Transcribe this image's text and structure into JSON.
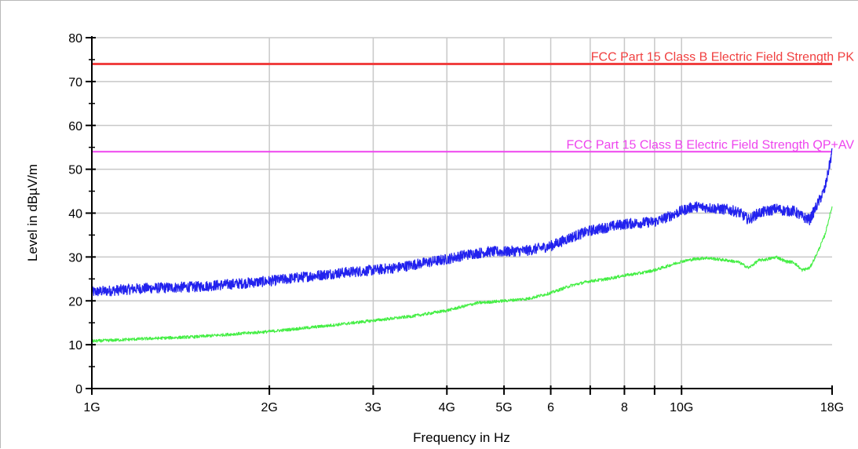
{
  "chart_data": {
    "type": "line",
    "xlabel": "Frequency in Hz",
    "ylabel": "Level in dBµV/m",
    "xscale": "log",
    "xlim_hz": [
      1000000000,
      18000000000
    ],
    "ylim": [
      0,
      80
    ],
    "grid": true,
    "x_ticks": [
      {
        "hz": 1000000000,
        "label": "1G"
      },
      {
        "hz": 2000000000,
        "label": "2G"
      },
      {
        "hz": 3000000000,
        "label": "3G"
      },
      {
        "hz": 4000000000,
        "label": "4G"
      },
      {
        "hz": 5000000000,
        "label": "5G"
      },
      {
        "hz": 6000000000,
        "label": "6"
      },
      {
        "hz": 7000000000,
        "label": ""
      },
      {
        "hz": 8000000000,
        "label": "8"
      },
      {
        "hz": 9000000000,
        "label": ""
      },
      {
        "hz": 10000000000,
        "label": "10G"
      },
      {
        "hz": 18000000000,
        "label": "18G"
      }
    ],
    "y_ticks": [
      0,
      10,
      20,
      30,
      40,
      50,
      60,
      70,
      80
    ],
    "limit_lines": [
      {
        "name": "FCC Part 15 Class B Electric Field Strength PK",
        "value": 74,
        "color": "#f04040"
      },
      {
        "name": "FCC Part 15 Class B Electric Field Strength QP+AV",
        "value": 54,
        "color": "#ee44ee"
      }
    ],
    "series": [
      {
        "color": "#2222ee",
        "noise_amplitude": 1.2,
        "x_hz": [
          1000000000,
          1200000000,
          1500000000,
          1800000000,
          2000000000,
          2300000000,
          2600000000,
          3000000000,
          3300000000,
          3600000000,
          4000000000,
          4300000000,
          4700000000,
          5000000000,
          5500000000,
          6000000000,
          6500000000,
          7000000000,
          7500000000,
          8000000000,
          8500000000,
          9000000000,
          9500000000,
          10000000000,
          10500000000,
          11000000000,
          11500000000,
          12000000000,
          12500000000,
          13000000000,
          13500000000,
          14000000000,
          14500000000,
          15000000000,
          15500000000,
          16000000000,
          16500000000,
          17000000000,
          17500000000,
          18000000000
        ],
        "y": [
          22,
          22.8,
          23.2,
          24,
          24.5,
          25.5,
          26.3,
          27,
          27.6,
          28.5,
          29.5,
          30.5,
          31.2,
          31.2,
          31.5,
          32.5,
          34.5,
          36,
          36.8,
          37.5,
          37.8,
          38,
          39.2,
          40.5,
          41.5,
          41.3,
          41,
          40.8,
          40.2,
          38.5,
          40,
          40.5,
          41,
          40.5,
          40.5,
          39.2,
          38.5,
          42,
          45.5,
          54
        ]
      },
      {
        "color": "#44ee44",
        "noise_amplitude": 0.35,
        "x_hz": [
          1000000000,
          1200000000,
          1500000000,
          2000000000,
          2500000000,
          3000000000,
          3500000000,
          4000000000,
          4500000000,
          5000000000,
          5500000000,
          6000000000,
          6500000000,
          7000000000,
          7500000000,
          8000000000,
          8500000000,
          9000000000,
          9500000000,
          10000000000,
          10500000000,
          11000000000,
          11500000000,
          12000000000,
          12500000000,
          13000000000,
          13500000000,
          14000000000,
          14500000000,
          15000000000,
          15500000000,
          16000000000,
          16500000000,
          17000000000,
          17500000000,
          18000000000
        ],
        "y": [
          10.8,
          11.3,
          11.8,
          13,
          14.3,
          15.5,
          16.5,
          17.8,
          19.5,
          20,
          20.5,
          21.8,
          23.5,
          24.5,
          25,
          25.8,
          26.3,
          27,
          28,
          29,
          29.5,
          29.8,
          29.5,
          29.2,
          28.8,
          27.5,
          29.2,
          29.5,
          30,
          29,
          28.8,
          27,
          27.5,
          31,
          35,
          41.5
        ]
      }
    ]
  }
}
